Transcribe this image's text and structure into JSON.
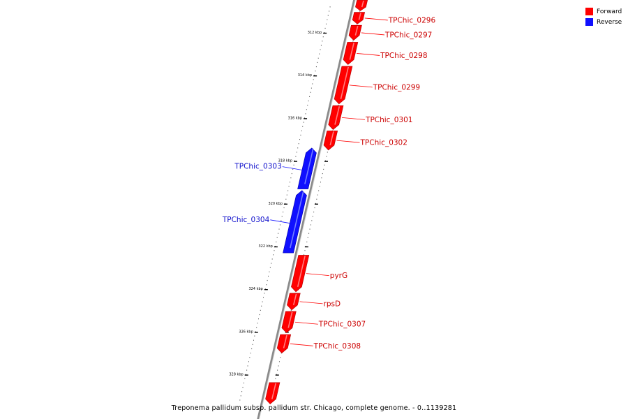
{
  "legend": {
    "forward_label": "Forward",
    "reverse_label": "Reverse",
    "forward_color": "#ff0000",
    "reverse_color": "#1010ff"
  },
  "caption": "Treponema pallidum subsp. pallidum str. Chicago, complete genome. - 0..1139281",
  "ticks": [
    {
      "label": "312 kbp",
      "kbp": 312
    },
    {
      "label": "314 kbp",
      "kbp": 314
    },
    {
      "label": "316 kbp",
      "kbp": 316
    },
    {
      "label": "318 kbp",
      "kbp": 318
    },
    {
      "label": "320 kbp",
      "kbp": 320
    },
    {
      "label": "322 kbp",
      "kbp": 322
    },
    {
      "label": "324 kbp",
      "kbp": 324
    },
    {
      "label": "326 kbp",
      "kbp": 326
    },
    {
      "label": "328 kbp",
      "kbp": 328
    }
  ],
  "genes": [
    {
      "name": "",
      "strand": "forward",
      "start": 310.5,
      "end": 311.0
    },
    {
      "name": "TPChic_0296",
      "strand": "forward",
      "start": 311.07,
      "end": 311.62
    },
    {
      "name": "TPChic_0297",
      "strand": "forward",
      "start": 311.68,
      "end": 312.38
    },
    {
      "name": "TPChic_0298",
      "strand": "forward",
      "start": 312.47,
      "end": 313.52
    },
    {
      "name": "TPChic_0299",
      "strand": "forward",
      "start": 313.6,
      "end": 315.36
    },
    {
      "name": "TPChic_0301",
      "strand": "forward",
      "start": 315.44,
      "end": 316.56
    },
    {
      "name": "TPChic_0302",
      "strand": "forward",
      "start": 316.62,
      "end": 317.52
    },
    {
      "name": "TPChic_0303",
      "strand": "reverse",
      "start": 317.42,
      "end": 319.34
    },
    {
      "name": "TPChic_0304",
      "strand": "reverse",
      "start": 319.41,
      "end": 322.33
    },
    {
      "name": "pyrG",
      "strand": "forward",
      "start": 322.44,
      "end": 324.15
    },
    {
      "name": "rpsD",
      "strand": "forward",
      "start": 324.22,
      "end": 325.0
    },
    {
      "name": "TPChic_0307",
      "strand": "forward",
      "start": 325.07,
      "end": 326.07
    },
    {
      "name": "TPChic_0308",
      "strand": "forward",
      "start": 326.15,
      "end": 327.02
    },
    {
      "name": "",
      "strand": "forward",
      "start": 328.4,
      "end": 329.4
    }
  ]
}
